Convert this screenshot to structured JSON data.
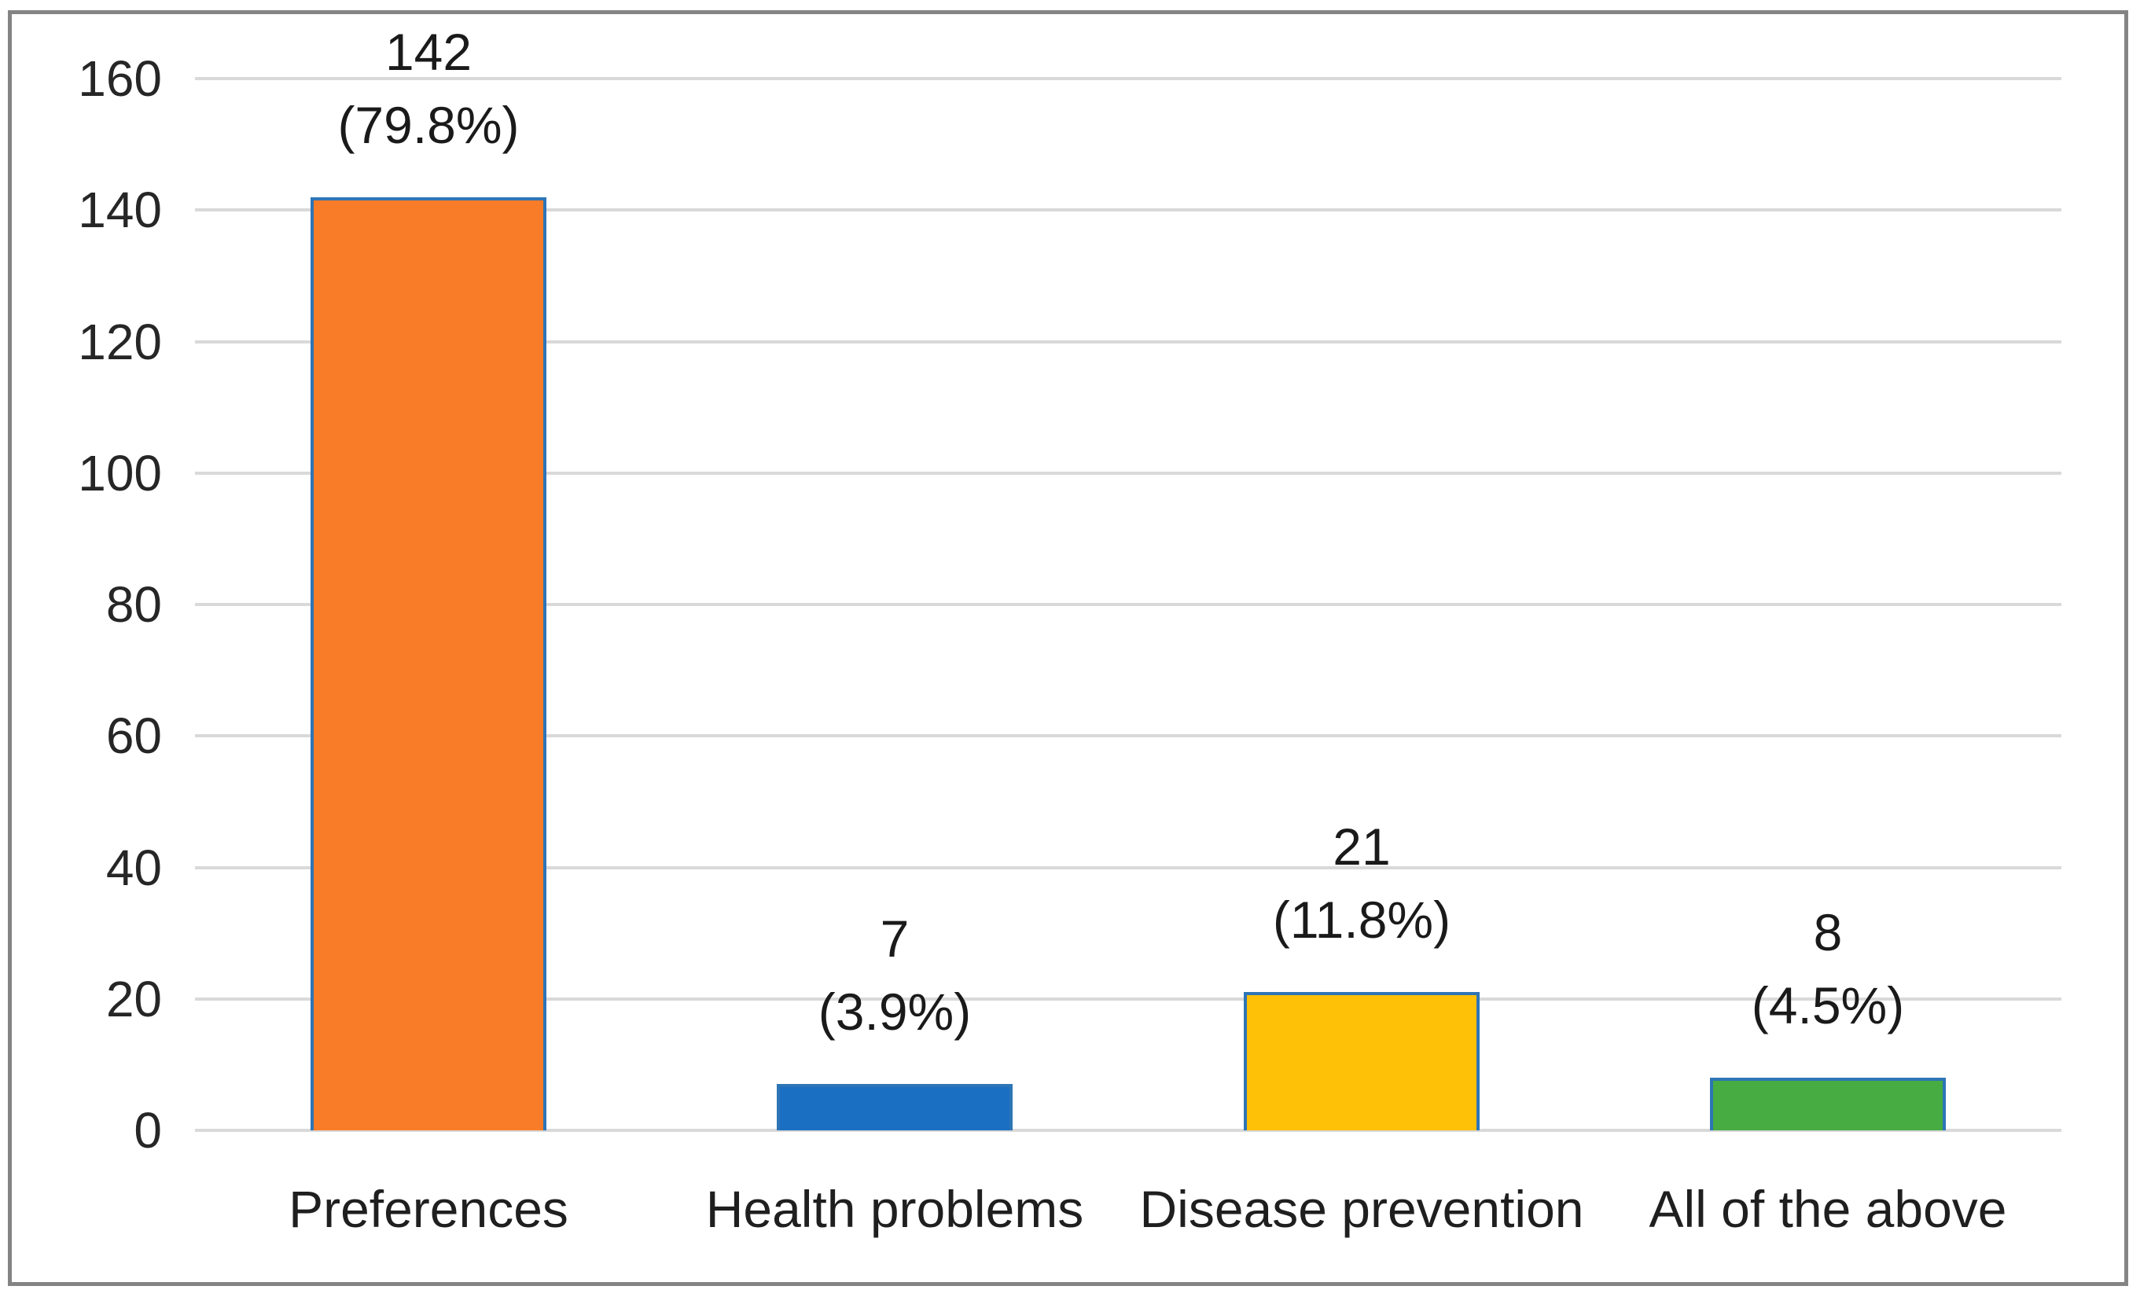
{
  "figure": {
    "background_color": "#ffffff",
    "border_color": "#848484"
  },
  "chart_data": {
    "type": "bar",
    "title": "",
    "xlabel": "",
    "ylabel": "",
    "categories": [
      "Preferences",
      "Health problems",
      "Disease prevention",
      "All of the above"
    ],
    "values": [
      142,
      7,
      21,
      8
    ],
    "percent_labels": [
      "(79.8%)",
      "(3.9%)",
      "(11.8%)",
      "(4.5%)"
    ],
    "value_labels": [
      "142",
      "7",
      "21",
      "8"
    ],
    "bar_colors": [
      "#F97D28",
      "#1B6FC3",
      "#FFC008",
      "#47AC42"
    ],
    "bar_border_color": "#2E75B6",
    "ylim": [
      0,
      160
    ],
    "yticks": [
      0,
      20,
      40,
      60,
      80,
      100,
      120,
      140,
      160
    ],
    "grid": true,
    "gridline_color": "#D9D9D9",
    "text_color": "#262626",
    "legend_position": "none"
  }
}
